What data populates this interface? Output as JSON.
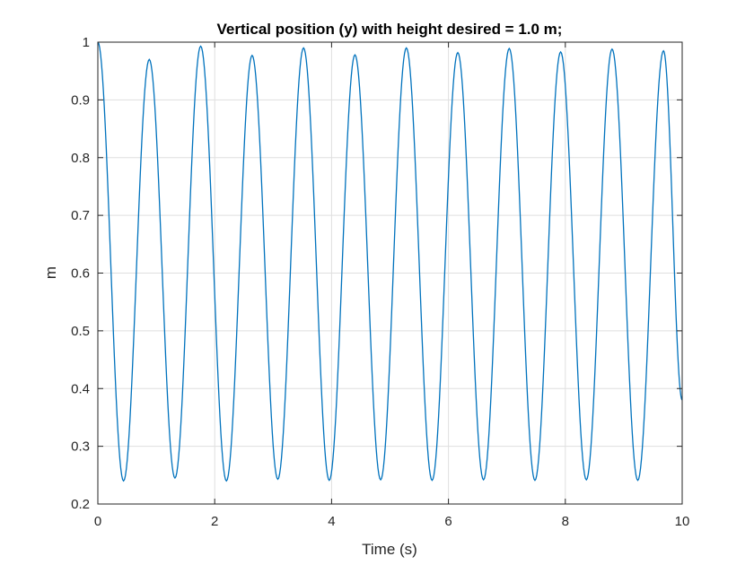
{
  "chart_data": {
    "type": "line",
    "title": "Vertical position (y) with height desired = 1.0 m;",
    "xlabel": "Time (s)",
    "ylabel": "m",
    "xlim": [
      0,
      10
    ],
    "ylim": [
      0.2,
      1.0
    ],
    "xticks": [
      0,
      2,
      4,
      6,
      8,
      10
    ],
    "xtick_labels": [
      "0",
      "2",
      "4",
      "6",
      "8",
      "10"
    ],
    "yticks": [
      0.2,
      0.3,
      0.4,
      0.5,
      0.6,
      0.7,
      0.8,
      0.9,
      1.0
    ],
    "ytick_labels": [
      "0.2",
      "0.3",
      "0.4",
      "0.5",
      "0.6",
      "0.7",
      "0.8",
      "0.9",
      "1"
    ],
    "grid": true,
    "line_color": "#0072BD",
    "series": [
      {
        "x": [
          0.0,
          0.44,
          0.88,
          1.32,
          1.76,
          2.2,
          2.64,
          3.08,
          3.52,
          3.96,
          4.4,
          4.84,
          5.28,
          5.72,
          6.16,
          6.6,
          7.04,
          7.48,
          7.92,
          8.36,
          8.8,
          9.24,
          9.68,
          10.0
        ],
        "y": [
          1.0,
          0.24,
          0.97,
          0.245,
          0.993,
          0.24,
          0.977,
          0.243,
          0.99,
          0.241,
          0.978,
          0.242,
          0.99,
          0.241,
          0.982,
          0.242,
          0.989,
          0.241,
          0.983,
          0.242,
          0.988,
          0.241,
          0.985,
          0.38
        ]
      }
    ]
  }
}
